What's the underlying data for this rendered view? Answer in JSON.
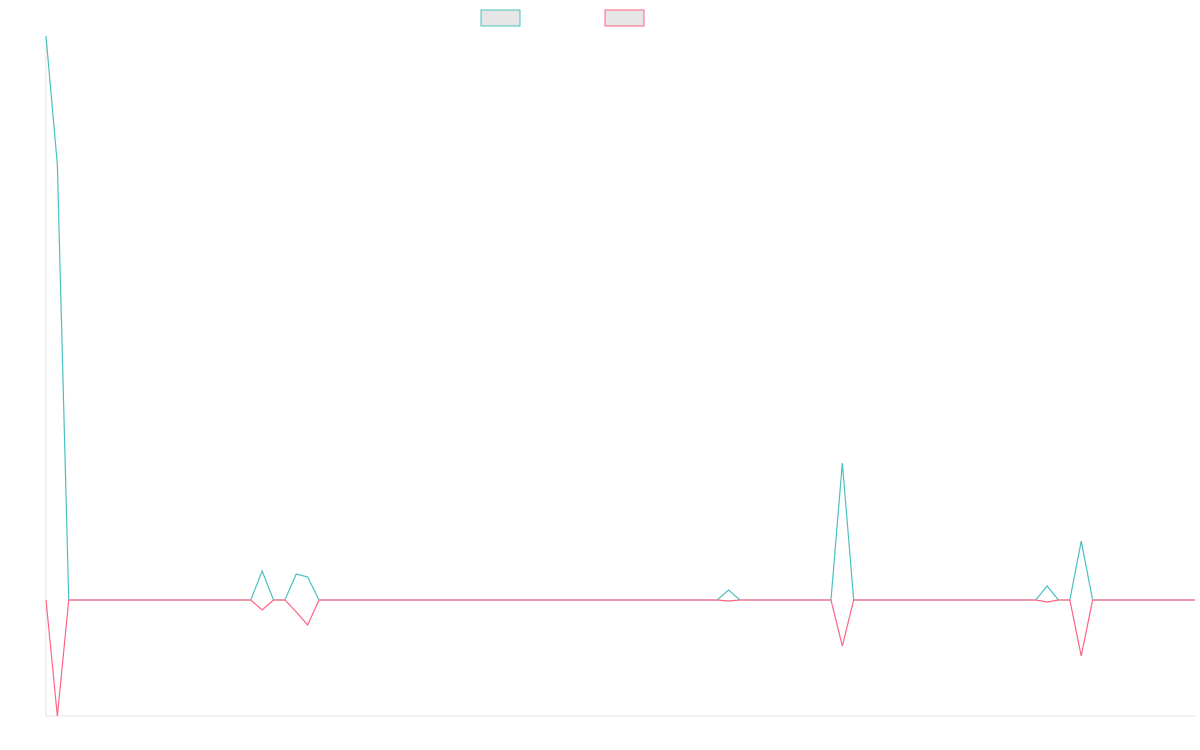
{
  "chart_data": {
    "type": "line",
    "categories": [
      null,
      null,
      null,
      null,
      null,
      null,
      null,
      null,
      null,
      null,
      null,
      null,
      null,
      null,
      null,
      null,
      null,
      null,
      null,
      null,
      null,
      null,
      null,
      null,
      null,
      null,
      null,
      null,
      null,
      null,
      null,
      null,
      null,
      null,
      null,
      null,
      null,
      null,
      null,
      null,
      null,
      null,
      null,
      null,
      null,
      null,
      null,
      null,
      null,
      null,
      null,
      null,
      null,
      null,
      null,
      null,
      null,
      null,
      null,
      null,
      null,
      null,
      null,
      null,
      null,
      null,
      null,
      null,
      null,
      null,
      null,
      null,
      null,
      null,
      null,
      null,
      null,
      null,
      null,
      null,
      null,
      null,
      null,
      null,
      null,
      null,
      null,
      null,
      null,
      null,
      null,
      null,
      null,
      null,
      null,
      null,
      null,
      null,
      null,
      null,
      null,
      null
    ],
    "series": [
      {
        "color": "#4bc0c0",
        "values": [
          564,
          435,
          0,
          0,
          0,
          0,
          0,
          0,
          0,
          0,
          0,
          0,
          0,
          0,
          0,
          0,
          0,
          0,
          0,
          29,
          0,
          0,
          26,
          23,
          0,
          0,
          0,
          0,
          0,
          0,
          0,
          0,
          0,
          0,
          0,
          0,
          0,
          0,
          0,
          0,
          0,
          0,
          0,
          0,
          0,
          0,
          0,
          0,
          0,
          0,
          0,
          0,
          0,
          0,
          0,
          0,
          0,
          0,
          0,
          0,
          10,
          0,
          0,
          0,
          0,
          0,
          0,
          0,
          0,
          0,
          137,
          0,
          0,
          0,
          0,
          0,
          0,
          0,
          0,
          0,
          0,
          0,
          0,
          0,
          0,
          0,
          0,
          0,
          14,
          0,
          0,
          59,
          0,
          0,
          0,
          0,
          0,
          0,
          0,
          0,
          0,
          0
        ]
      },
      {
        "color": "#ff6384",
        "values": [
          0,
          -116,
          0,
          0,
          0,
          0,
          0,
          0,
          0,
          0,
          0,
          0,
          0,
          0,
          0,
          0,
          0,
          0,
          0,
          -10,
          0,
          0,
          -12,
          -25,
          0,
          0,
          0,
          0,
          0,
          0,
          0,
          0,
          0,
          0,
          0,
          0,
          0,
          0,
          0,
          0,
          0,
          0,
          0,
          0,
          0,
          0,
          0,
          0,
          0,
          0,
          0,
          0,
          0,
          0,
          0,
          0,
          0,
          0,
          0,
          0,
          -1,
          0,
          0,
          0,
          0,
          0,
          0,
          0,
          0,
          0,
          -46,
          0,
          0,
          0,
          0,
          0,
          0,
          0,
          0,
          0,
          0,
          0,
          0,
          0,
          0,
          0,
          0,
          0,
          -2,
          0,
          0,
          -56,
          0,
          0,
          0,
          0,
          0,
          0,
          0,
          0,
          0,
          0
        ]
      }
    ],
    "ylim": [
      -116,
      564
    ],
    "legend": "top"
  }
}
